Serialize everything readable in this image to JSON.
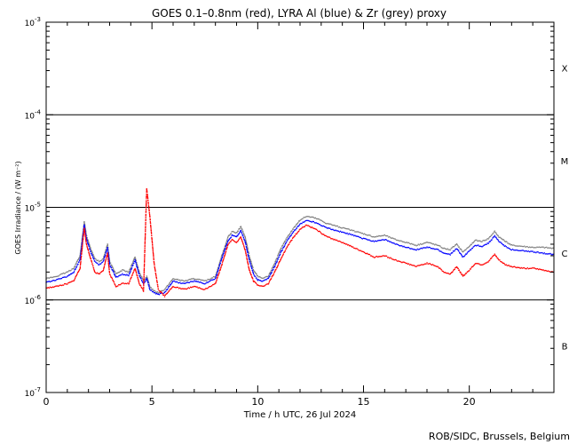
{
  "chart_data": {
    "type": "scatter",
    "title": "GOES 0.1–0.8nm (red), LYRA Al (blue) & Zr (grey) proxy",
    "xlabel": "Time / h UTC, 26 Jul 2024",
    "ylabel": "GOES Irradiance / (W m⁻²)",
    "xlim": [
      0,
      24
    ],
    "ylim": [
      1e-07,
      0.001
    ],
    "yscale": "log",
    "x_ticks": [
      0,
      5,
      10,
      15,
      20
    ],
    "x_tick_labels": [
      "0",
      "5",
      "10",
      "15",
      "20"
    ],
    "y_ticks": [
      {
        "value": 1e-07,
        "base": "10",
        "exp": "-7"
      },
      {
        "value": 1e-06,
        "base": "10",
        "exp": "-6"
      },
      {
        "value": 1e-05,
        "base": "10",
        "exp": "-5"
      },
      {
        "value": 0.0001,
        "base": "10",
        "exp": "-4"
      },
      {
        "value": 0.001,
        "base": "10",
        "exp": "-3"
      }
    ],
    "flare_class_lines": [
      1e-06,
      1e-05,
      0.0001
    ],
    "flare_classes": [
      {
        "label": "X",
        "value": 0.00032
      },
      {
        "label": "M",
        "value": 3.2e-05
      },
      {
        "label": "C",
        "value": 3.2e-06
      },
      {
        "label": "B",
        "value": 3.2e-07
      }
    ],
    "colors": {
      "goes": "#ff0000",
      "al": "#0000ff",
      "zr": "#808080",
      "axis": "#000000"
    },
    "series": [
      {
        "key": "zr",
        "x": [
          0.0,
          0.5,
          1.0,
          1.3,
          1.6,
          1.8,
          1.9,
          2.1,
          2.3,
          2.5,
          2.7,
          2.9,
          3.0,
          3.3,
          3.6,
          3.9,
          4.2,
          4.4,
          4.6,
          4.75,
          4.9,
          5.1,
          5.3,
          5.6,
          6.0,
          6.5,
          7.0,
          7.5,
          8.0,
          8.3,
          8.6,
          8.8,
          9.0,
          9.2,
          9.4,
          9.6,
          9.8,
          10.0,
          10.2,
          10.5,
          10.8,
          11.1,
          11.4,
          11.7,
          12.0,
          12.3,
          12.6,
          12.9,
          13.2,
          13.5,
          14.0,
          14.5,
          15.0,
          15.5,
          16.0,
          16.5,
          17.0,
          17.5,
          18.0,
          18.5,
          18.8,
          19.1,
          19.4,
          19.7,
          20.0,
          20.3,
          20.6,
          20.9,
          21.2,
          21.4,
          21.7,
          22.0,
          22.5,
          23.0,
          23.5,
          24.0
        ],
        "y": [
          1.7e-06,
          1.8e-06,
          2e-06,
          2.2e-06,
          3e-06,
          7e-06,
          5e-06,
          3.6e-06,
          2.8e-06,
          2.6e-06,
          2.8e-06,
          4e-06,
          2.6e-06,
          1.9e-06,
          2.1e-06,
          2e-06,
          2.9e-06,
          2e-06,
          1.6e-06,
          1.8e-06,
          1.4e-06,
          1.25e-06,
          1.2e-06,
          1.3e-06,
          1.7e-06,
          1.6e-06,
          1.7e-06,
          1.6e-06,
          1.8e-06,
          3e-06,
          4.8e-06,
          5.5e-06,
          5.3e-06,
          6.2e-06,
          4.8e-06,
          3e-06,
          2.1e-06,
          1.8e-06,
          1.7e-06,
          1.8e-06,
          2.5e-06,
          3.6e-06,
          4.8e-06,
          6e-06,
          7.3e-06,
          8e-06,
          7.8e-06,
          7.4e-06,
          6.8e-06,
          6.5e-06,
          6e-06,
          5.6e-06,
          5.2e-06,
          4.8e-06,
          5e-06,
          4.5e-06,
          4.2e-06,
          3.9e-06,
          4.2e-06,
          3.9e-06,
          3.6e-06,
          3.5e-06,
          4e-06,
          3.3e-06,
          3.8e-06,
          4.4e-06,
          4.3e-06,
          4.6e-06,
          5.5e-06,
          4.8e-06,
          4.3e-06,
          3.9e-06,
          3.8e-06,
          3.7e-06,
          3.7e-06,
          3.6e-06
        ]
      },
      {
        "key": "al",
        "x": [
          0.0,
          0.5,
          1.0,
          1.3,
          1.6,
          1.8,
          1.9,
          2.1,
          2.3,
          2.5,
          2.7,
          2.9,
          3.0,
          3.3,
          3.6,
          3.9,
          4.2,
          4.4,
          4.6,
          4.75,
          4.9,
          5.1,
          5.3,
          5.6,
          6.0,
          6.5,
          7.0,
          7.5,
          8.0,
          8.3,
          8.6,
          8.8,
          9.0,
          9.2,
          9.4,
          9.6,
          9.8,
          10.0,
          10.2,
          10.5,
          10.8,
          11.1,
          11.4,
          11.7,
          12.0,
          12.3,
          12.6,
          12.9,
          13.2,
          13.5,
          14.0,
          14.5,
          15.0,
          15.5,
          16.0,
          16.5,
          17.0,
          17.5,
          18.0,
          18.5,
          18.8,
          19.1,
          19.4,
          19.7,
          20.0,
          20.3,
          20.6,
          20.9,
          21.2,
          21.4,
          21.7,
          22.0,
          22.5,
          23.0,
          23.5,
          24.0
        ],
        "y": [
          1.55e-06,
          1.65e-06,
          1.8e-06,
          2e-06,
          2.7e-06,
          6.5e-06,
          4.6e-06,
          3.3e-06,
          2.6e-06,
          2.4e-06,
          2.6e-06,
          3.7e-06,
          2.4e-06,
          1.75e-06,
          1.9e-06,
          1.85e-06,
          2.7e-06,
          1.85e-06,
          1.5e-06,
          1.7e-06,
          1.3e-06,
          1.2e-06,
          1.15e-06,
          1.2e-06,
          1.6e-06,
          1.5e-06,
          1.6e-06,
          1.5e-06,
          1.7e-06,
          2.8e-06,
          4.4e-06,
          5e-06,
          4.8e-06,
          5.6e-06,
          4.3e-06,
          2.7e-06,
          1.9e-06,
          1.65e-06,
          1.6e-06,
          1.7e-06,
          2.3e-06,
          3.3e-06,
          4.4e-06,
          5.5e-06,
          6.6e-06,
          7.2e-06,
          7e-06,
          6.6e-06,
          6.1e-06,
          5.8e-06,
          5.4e-06,
          5e-06,
          4.6e-06,
          4.3e-06,
          4.5e-06,
          4e-06,
          3.7e-06,
          3.5e-06,
          3.7e-06,
          3.5e-06,
          3.2e-06,
          3.1e-06,
          3.6e-06,
          2.9e-06,
          3.4e-06,
          3.9e-06,
          3.8e-06,
          4.1e-06,
          4.9e-06,
          4.3e-06,
          3.8e-06,
          3.5e-06,
          3.4e-06,
          3.3e-06,
          3.2e-06,
          3.1e-06
        ]
      },
      {
        "key": "goes",
        "x": [
          0.0,
          0.5,
          1.0,
          1.3,
          1.6,
          1.8,
          1.9,
          2.1,
          2.3,
          2.5,
          2.7,
          2.9,
          3.0,
          3.3,
          3.6,
          3.9,
          4.2,
          4.4,
          4.6,
          4.75,
          4.9,
          5.1,
          5.3,
          5.6,
          6.0,
          6.5,
          7.0,
          7.5,
          8.0,
          8.3,
          8.6,
          8.8,
          9.0,
          9.2,
          9.4,
          9.6,
          9.8,
          10.0,
          10.2,
          10.5,
          10.8,
          11.1,
          11.4,
          11.7,
          12.0,
          12.3,
          12.6,
          12.9,
          13.2,
          13.5,
          14.0,
          14.5,
          15.0,
          15.5,
          16.0,
          16.5,
          17.0,
          17.5,
          18.0,
          18.5,
          18.8,
          19.1,
          19.4,
          19.7,
          20.0,
          20.3,
          20.6,
          20.9,
          21.2,
          21.4,
          21.7,
          22.0,
          22.5,
          23.0,
          23.5,
          24.0
        ],
        "y": [
          1.35e-06,
          1.4e-06,
          1.5e-06,
          1.6e-06,
          2.2e-06,
          6e-06,
          4e-06,
          2.8e-06,
          2e-06,
          1.9e-06,
          2.1e-06,
          3.2e-06,
          1.9e-06,
          1.4e-06,
          1.5e-06,
          1.5e-06,
          2.2e-06,
          1.5e-06,
          1.25e-06,
          1.6e-05,
          8e-06,
          2.5e-06,
          1.3e-06,
          1.1e-06,
          1.4e-06,
          1.3e-06,
          1.4e-06,
          1.3e-06,
          1.5e-06,
          2.4e-06,
          4e-06,
          4.5e-06,
          4.2e-06,
          4.8e-06,
          3.5e-06,
          2.1e-06,
          1.6e-06,
          1.45e-06,
          1.4e-06,
          1.5e-06,
          2e-06,
          2.8e-06,
          3.8e-06,
          4.8e-06,
          5.8e-06,
          6.4e-06,
          6e-06,
          5.5e-06,
          4.9e-06,
          4.6e-06,
          4.2e-06,
          3.7e-06,
          3.3e-06,
          2.9e-06,
          3e-06,
          2.7e-06,
          2.5e-06,
          2.3e-06,
          2.5e-06,
          2.3e-06,
          2e-06,
          1.9e-06,
          2.3e-06,
          1.8e-06,
          2.1e-06,
          2.5e-06,
          2.4e-06,
          2.6e-06,
          3.1e-06,
          2.7e-06,
          2.4e-06,
          2.3e-06,
          2.2e-06,
          2.2e-06,
          2.1e-06,
          2e-06
        ]
      }
    ]
  },
  "credit": "ROB/SIDC, Brussels, Belgium"
}
